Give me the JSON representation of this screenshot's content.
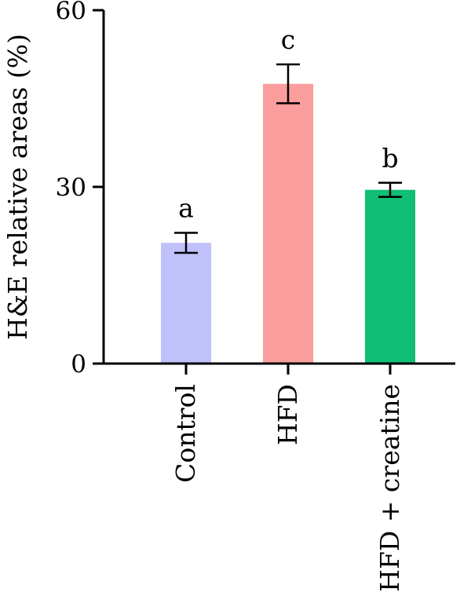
{
  "chart_data": {
    "type": "bar",
    "ylabel": "H&E relative areas (%)",
    "xlabel": "",
    "ylim": [
      0,
      60
    ],
    "yticks": [
      0,
      30,
      60
    ],
    "ytick_labels": [
      "0",
      "30",
      "60"
    ],
    "categories": [
      "Control",
      "HFD",
      "HFD + creatine"
    ],
    "values": [
      20.5,
      47.5,
      29.5
    ],
    "errors": [
      1.7,
      3.3,
      1.2
    ],
    "significance_labels": [
      "a",
      "c",
      "b"
    ],
    "colors": [
      "#c0c0fa",
      "#fb9d9d",
      "#10be74"
    ],
    "grid": false,
    "legend": "none"
  }
}
